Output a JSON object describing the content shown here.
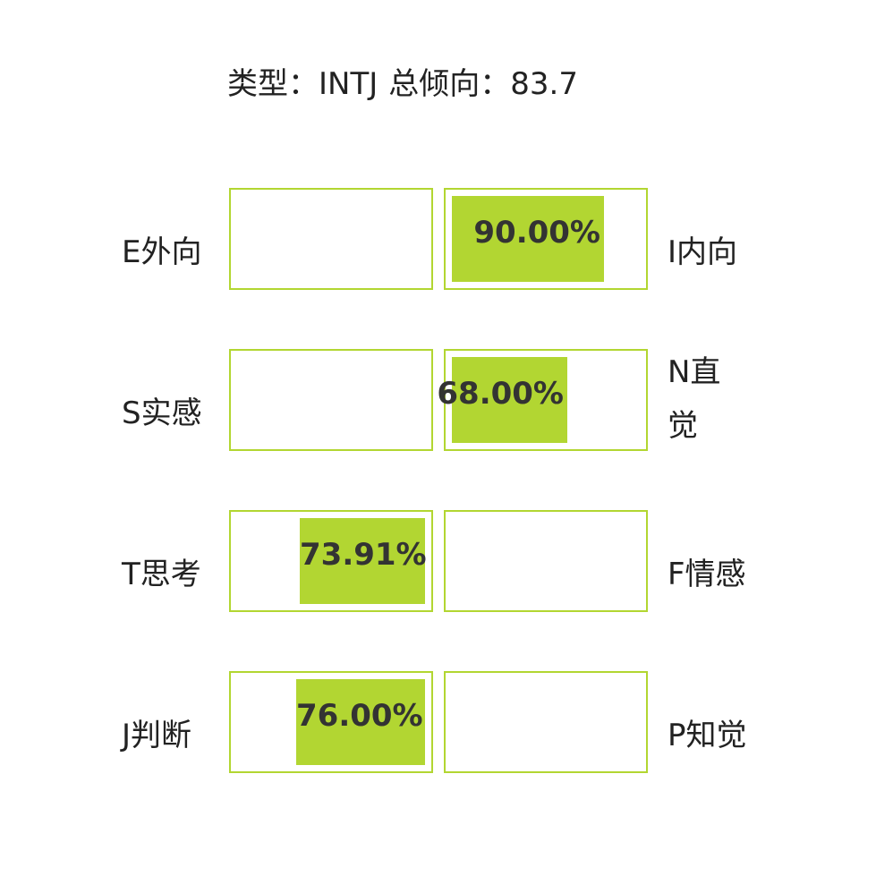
{
  "title": {
    "type_label": "类型：INTJ",
    "tendency_label": "总倾向：83.7"
  },
  "colors": {
    "bar_fill": "#b2d632",
    "bar_border": "#b2d631",
    "text": "#222222"
  },
  "chart_data": {
    "type": "bar",
    "title": "类型：INTJ 总倾向：83.7",
    "orientation": "horizontal-diverging",
    "xlim": [
      0,
      100
    ],
    "unit": "%",
    "dimensions": [
      {
        "left_label": "E外向",
        "right_label": "I内向",
        "side": "right",
        "value": 90.0,
        "value_label": "90.00%"
      },
      {
        "left_label": "S实感",
        "right_label": "N直觉",
        "side": "right",
        "value": 68.0,
        "value_label": "68.00%"
      },
      {
        "left_label": "T思考",
        "right_label": "F情感",
        "side": "left",
        "value": 73.91,
        "value_label": "73.91%"
      },
      {
        "left_label": "J判断",
        "right_label": "P知觉",
        "side": "left",
        "value": 76.0,
        "value_label": "76.00%"
      }
    ]
  }
}
